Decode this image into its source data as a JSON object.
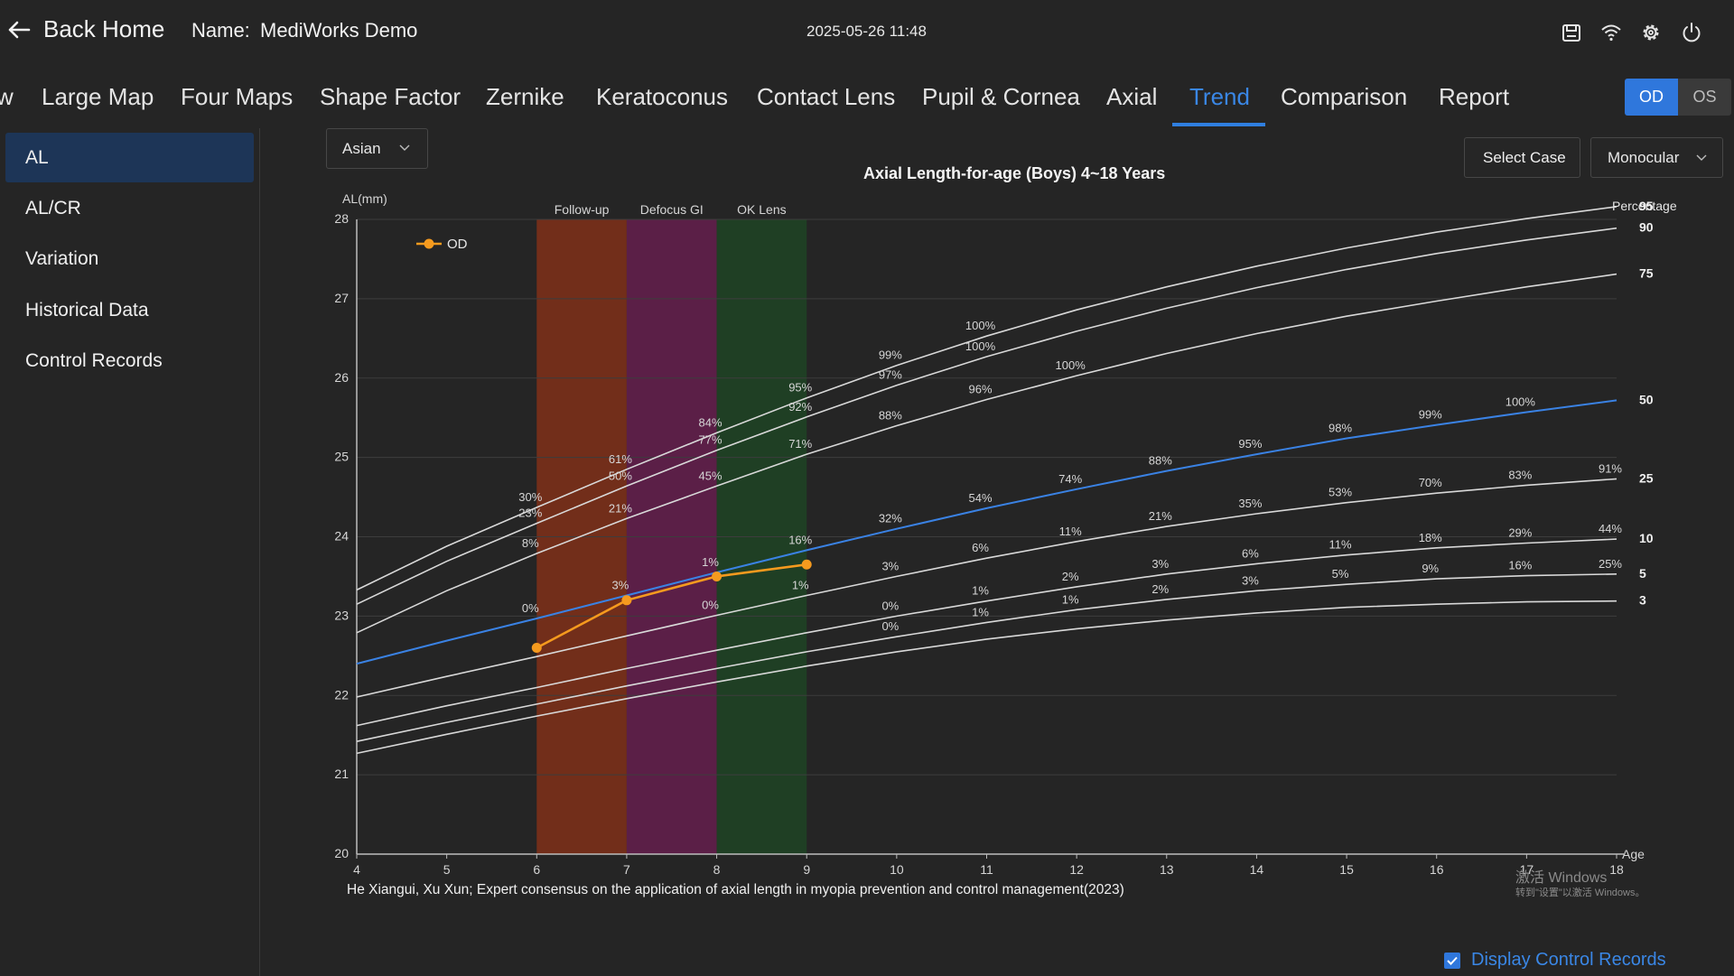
{
  "header": {
    "back_label": "Back Home",
    "name_label": "Name:",
    "name_value": "MediWorks Demo",
    "datetime": "2025-05-26 11:48",
    "icons": [
      "save-icon",
      "wifi-icon",
      "gear-icon",
      "power-icon"
    ]
  },
  "tabs": [
    {
      "label": "w"
    },
    {
      "label": "Large Map"
    },
    {
      "label": "Four Maps"
    },
    {
      "label": "Shape Factor"
    },
    {
      "label": "Zernike"
    },
    {
      "label": "Keratoconus"
    },
    {
      "label": "Contact Lens"
    },
    {
      "label": "Pupil & Cornea"
    },
    {
      "label": "Axial"
    },
    {
      "label": "Trend",
      "active": true
    },
    {
      "label": "Comparison"
    },
    {
      "label": "Report"
    }
  ],
  "eye": {
    "od": "OD",
    "os": "OS",
    "selected": "OD"
  },
  "sidebar": {
    "items": [
      {
        "label": "AL",
        "active": true
      },
      {
        "label": "AL/CR"
      },
      {
        "label": "Variation"
      },
      {
        "label": "Historical Data"
      },
      {
        "label": "Control Records"
      }
    ]
  },
  "controls": {
    "ethnicity": "Asian",
    "select_case": "Select Case",
    "mode": "Monocular"
  },
  "footer": {
    "citation": "He Xiangui, Xu Xun; Expert consensus on the application of axial length in myopia prevention and control management(2023)",
    "display_records_label": "Display Control Records",
    "display_records_checked": true,
    "watermark_line1": "激活 Windows",
    "watermark_line2": "转到\"设置\"以激活 Windows。"
  },
  "chart_data": {
    "type": "line",
    "title": "Axial Length-for-age (Boys) 4~18 Years",
    "ylabel": "AL(mm)",
    "xlabel": "Age",
    "right_label": "Percentage",
    "xlim": [
      4,
      18
    ],
    "ylim": [
      20,
      28
    ],
    "xticks": [
      4,
      5,
      6,
      7,
      8,
      9,
      10,
      11,
      12,
      13,
      14,
      15,
      16,
      17,
      18
    ],
    "yticks": [
      20,
      21,
      22,
      23,
      24,
      25,
      26,
      27,
      28
    ],
    "grid": true,
    "legend": {
      "position": "top-left",
      "entries": [
        "OD"
      ]
    },
    "colors": {
      "od": "#f59a1e",
      "p50": "#3a82e4",
      "percentile": "#d9d9d9",
      "grid": "#3d3d3d",
      "axis": "#bdbdbd"
    },
    "bands": [
      {
        "label": "Follow-up",
        "x0": 6,
        "x1": 7,
        "color": "#722e1a"
      },
      {
        "label": "Defocus GI",
        "x0": 7,
        "x1": 8,
        "color": "#5b1f47"
      },
      {
        "label": "OK Lens",
        "x0": 8,
        "x1": 9,
        "color": "#1f3f24"
      }
    ],
    "x": [
      4,
      5,
      6,
      7,
      8,
      9,
      10,
      11,
      12,
      13,
      14,
      15,
      16,
      17,
      18
    ],
    "percentiles": [
      {
        "name": "95",
        "values": [
          23.33,
          23.88,
          24.37,
          24.85,
          25.31,
          25.75,
          26.16,
          26.53,
          26.86,
          27.15,
          27.41,
          27.64,
          27.84,
          28.01,
          28.16
        ]
      },
      {
        "name": "90",
        "values": [
          23.15,
          23.69,
          24.17,
          24.64,
          25.09,
          25.51,
          25.91,
          26.27,
          26.59,
          26.88,
          27.14,
          27.37,
          27.57,
          27.74,
          27.89
        ]
      },
      {
        "name": "75",
        "values": [
          22.79,
          23.32,
          23.79,
          24.23,
          24.64,
          25.04,
          25.4,
          25.73,
          26.03,
          26.31,
          26.56,
          26.78,
          26.97,
          27.15,
          27.31
        ]
      },
      {
        "name": "50",
        "values": [
          22.4,
          22.69,
          22.97,
          23.26,
          23.55,
          23.83,
          24.1,
          24.36,
          24.6,
          24.83,
          25.04,
          25.24,
          25.41,
          25.57,
          25.72
        ]
      },
      {
        "name": "25",
        "values": [
          21.98,
          22.24,
          22.49,
          22.75,
          23.01,
          23.26,
          23.5,
          23.73,
          23.94,
          24.13,
          24.29,
          24.43,
          24.55,
          24.65,
          24.73
        ]
      },
      {
        "name": "10",
        "values": [
          21.62,
          21.87,
          22.1,
          22.34,
          22.57,
          22.79,
          23.0,
          23.19,
          23.37,
          23.53,
          23.66,
          23.77,
          23.86,
          23.92,
          23.97
        ]
      },
      {
        "name": "5",
        "values": [
          21.42,
          21.66,
          21.89,
          22.12,
          22.34,
          22.55,
          22.74,
          22.92,
          23.08,
          23.21,
          23.32,
          23.4,
          23.47,
          23.51,
          23.53
        ]
      },
      {
        "name": "3",
        "values": [
          21.27,
          21.51,
          21.74,
          21.96,
          22.17,
          22.37,
          22.55,
          22.71,
          22.84,
          22.95,
          23.04,
          23.11,
          23.15,
          23.18,
          23.19
        ]
      }
    ],
    "series": [
      {
        "name": "OD",
        "x": [
          6,
          7,
          8,
          9
        ],
        "values": [
          22.6,
          23.2,
          23.5,
          23.65
        ]
      }
    ],
    "annotations": [
      {
        "x": 6,
        "row": "95",
        "text": "30%"
      },
      {
        "x": 6,
        "row": "90",
        "text": "23%"
      },
      {
        "x": 6,
        "row": "75",
        "text": "8%"
      },
      {
        "x": 6,
        "row": "50",
        "text": "0%"
      },
      {
        "x": 7,
        "row": "95",
        "text": "61%"
      },
      {
        "x": 7,
        "row": "90",
        "text": "50%"
      },
      {
        "x": 7,
        "row": "75",
        "text": "21%"
      },
      {
        "x": 7,
        "row": "50",
        "text": "3%"
      },
      {
        "x": 8,
        "row": "95",
        "text": "84%"
      },
      {
        "x": 8,
        "row": "90",
        "text": "77%"
      },
      {
        "x": 8,
        "row": "75",
        "text": "45%"
      },
      {
        "x": 8,
        "row": "50",
        "text": "1%"
      },
      {
        "x": 8,
        "row": "25",
        "text": "0%"
      },
      {
        "x": 9,
        "row": "95",
        "text": "95%"
      },
      {
        "x": 9,
        "row": "90",
        "text": "92%"
      },
      {
        "x": 9,
        "row": "75",
        "text": "71%"
      },
      {
        "x": 9,
        "row": "50",
        "text": "16%"
      },
      {
        "x": 9,
        "row": "25",
        "text": "1%"
      },
      {
        "x": 10,
        "row": "95",
        "text": "99%"
      },
      {
        "x": 10,
        "row": "90",
        "text": "97%"
      },
      {
        "x": 10,
        "row": "75",
        "text": "88%"
      },
      {
        "x": 10,
        "row": "50",
        "text": "32%"
      },
      {
        "x": 10,
        "row": "25",
        "text": "3%"
      },
      {
        "x": 10,
        "row": "10",
        "text": "0%"
      },
      {
        "x": 10,
        "row": "5",
        "text": "0%"
      },
      {
        "x": 11,
        "row": "95",
        "text": "100%"
      },
      {
        "x": 11,
        "row": "90",
        "text": "100%"
      },
      {
        "x": 11,
        "row": "75",
        "text": "96%"
      },
      {
        "x": 11,
        "row": "50",
        "text": "54%"
      },
      {
        "x": 11,
        "row": "25",
        "text": "6%"
      },
      {
        "x": 11,
        "row": "10",
        "text": "1%"
      },
      {
        "x": 11,
        "row": "5",
        "text": "1%"
      },
      {
        "x": 12,
        "row": "75",
        "text": "100%"
      },
      {
        "x": 12,
        "row": "50",
        "text": "74%"
      },
      {
        "x": 12,
        "row": "25",
        "text": "11%"
      },
      {
        "x": 12,
        "row": "10",
        "text": "2%"
      },
      {
        "x": 12,
        "row": "5",
        "text": "1%"
      },
      {
        "x": 13,
        "row": "50",
        "text": "88%"
      },
      {
        "x": 13,
        "row": "25",
        "text": "21%"
      },
      {
        "x": 13,
        "row": "10",
        "text": "3%"
      },
      {
        "x": 13,
        "row": "5",
        "text": "2%"
      },
      {
        "x": 14,
        "row": "50",
        "text": "95%"
      },
      {
        "x": 14,
        "row": "25",
        "text": "35%"
      },
      {
        "x": 14,
        "row": "10",
        "text": "6%"
      },
      {
        "x": 14,
        "row": "5",
        "text": "3%"
      },
      {
        "x": 15,
        "row": "50",
        "text": "98%"
      },
      {
        "x": 15,
        "row": "25",
        "text": "53%"
      },
      {
        "x": 15,
        "row": "10",
        "text": "11%"
      },
      {
        "x": 15,
        "row": "5",
        "text": "5%"
      },
      {
        "x": 16,
        "row": "50",
        "text": "99%"
      },
      {
        "x": 16,
        "row": "25",
        "text": "70%"
      },
      {
        "x": 16,
        "row": "10",
        "text": "18%"
      },
      {
        "x": 16,
        "row": "5",
        "text": "9%"
      },
      {
        "x": 17,
        "row": "50",
        "text": "100%"
      },
      {
        "x": 17,
        "row": "25",
        "text": "83%"
      },
      {
        "x": 17,
        "row": "10",
        "text": "29%"
      },
      {
        "x": 17,
        "row": "5",
        "text": "16%"
      },
      {
        "x": 18,
        "row": "25",
        "text": "91%"
      },
      {
        "x": 18,
        "row": "10",
        "text": "44%"
      },
      {
        "x": 18,
        "row": "5",
        "text": "25%"
      }
    ]
  }
}
